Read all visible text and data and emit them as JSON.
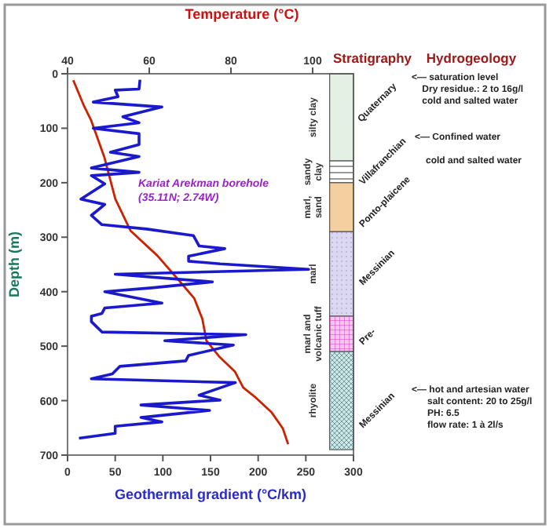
{
  "chart_data": {
    "type": "line",
    "xlabel": "Geothermal gradient (°C/km)",
    "x2label": "Temperature (°C)",
    "ylabel": "Depth (m)",
    "xlim": [
      0,
      300
    ],
    "xticks": [
      0,
      50,
      100,
      150,
      200,
      250,
      300
    ],
    "x2lim": [
      40,
      110
    ],
    "x2ticks": [
      40,
      60,
      80,
      100
    ],
    "ylim": [
      700,
      0
    ],
    "yticks": [
      0,
      100,
      200,
      300,
      400,
      500,
      600,
      700
    ],
    "grid": false,
    "line_style": "solid",
    "series": [
      {
        "color": "#cc2200",
        "axis": "x2",
        "x": [
          41.4,
          43.9,
          45.8,
          49,
          51.7,
          55.4,
          62,
          67,
          71,
          73,
          74,
          77,
          81,
          83,
          86,
          90,
          92.7,
          94
        ],
        "values": [
          12,
          57,
          86,
          153,
          230,
          288,
          334,
          377,
          412,
          450,
          490,
          518,
          547,
          576,
          594,
          622,
          651,
          680
        ]
      },
      {
        "color": "#1a1acc",
        "x": [
          76,
          75,
          50,
          53,
          27,
          99,
          58,
          75,
          27,
          75,
          75,
          45,
          75,
          25,
          75,
          25,
          39,
          14,
          39,
          25,
          36,
          83,
          132,
          138,
          165,
          127,
          127,
          160,
          253,
          50,
          152,
          88,
          39,
          99,
          39,
          36,
          25,
          25,
          36,
          187,
          102,
          174,
          127,
          124,
          55,
          47,
          25,
          176,
          138,
          160,
          77,
          149,
          77,
          99,
          50,
          50,
          12
        ],
        "values": [
          11,
          28,
          30,
          42,
          52,
          61,
          79,
          90,
          100,
          110,
          130,
          144,
          152,
          173,
          181,
          187,
          202,
          230,
          240,
          260,
          277,
          285,
          297,
          316,
          321,
          335,
          344,
          349,
          359,
          368,
          382,
          393,
          400,
          421,
          430,
          440,
          445,
          455,
          474,
          479,
          490,
          498,
          517,
          527,
          537,
          551,
          560,
          567,
          590,
          599,
          608,
          618,
          631,
          639,
          647,
          660,
          669
        ]
      }
    ],
    "bands": [
      {
        "axis": "y",
        "from": 0,
        "to": 160,
        "label": "silty clay",
        "color": "#e3f0e3"
      },
      {
        "axis": "y",
        "from": 160,
        "to": 200,
        "label": "sandy\nclay",
        "color": "#ffffff"
      },
      {
        "axis": "y",
        "from": 200,
        "to": 290,
        "label": "marl,\nsand",
        "color": "#f4cfa0"
      },
      {
        "axis": "y",
        "from": 290,
        "to": 445,
        "label": "marl",
        "color": "#dcd8f2"
      },
      {
        "axis": "y",
        "from": 445,
        "to": 510,
        "label": "marl and\nvolcanic tuff",
        "color": "#f6c6ef"
      },
      {
        "axis": "y",
        "from": 510,
        "to": 690,
        "label": "rhyolite",
        "color": "#cfe6e6"
      }
    ],
    "annotations": [
      "Kariat Arekman borehole\n(35.11N; 2.74W)",
      "Stratigraphy",
      "Hydrogeology",
      "Quaternary",
      "Villafranchian",
      "Ponto-plaicene",
      "Messinian",
      "Pre-",
      "Messinian",
      "<— saturation level\n    Dry residue.: 2 to 16g/l\n    cold and salted water",
      "<— Confined water",
      "cold and salted water",
      "<— hot and artesian water\n      salt content: 20 to 25g/l\n      PH: 6.5\n      flow rate: 1 à 2l/s"
    ]
  }
}
